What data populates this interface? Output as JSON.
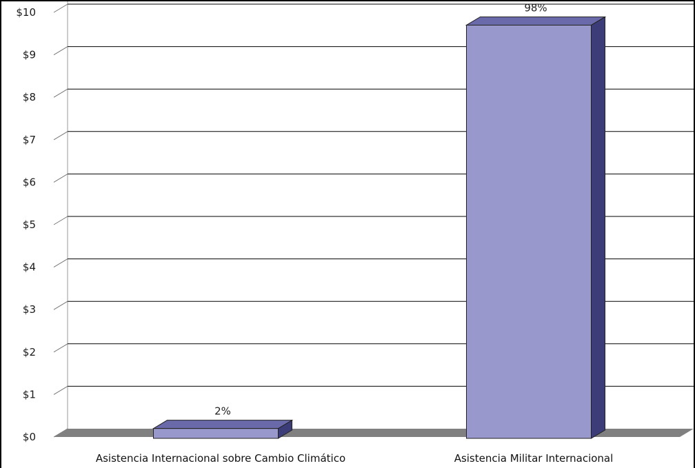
{
  "chart_data": {
    "type": "bar",
    "categories": [
      "Asistencia Internacional sobre Cambio Climático",
      "Asistencia Militar Internacional"
    ],
    "values": [
      0.2,
      9.7
    ],
    "data_labels": [
      "2%",
      "98%"
    ],
    "yticks": [
      "$0",
      "$1",
      "$2",
      "$3",
      "$4",
      "$5",
      "$6",
      "$7",
      "$8",
      "$9",
      "$10"
    ],
    "ylim": [
      0,
      10
    ],
    "grid": true,
    "legend": "none",
    "style": "3d",
    "colors": {
      "bar_front": "#9898cc",
      "bar_top": "#6a6aaa",
      "bar_side": "#3c3c78",
      "floor": "#808080",
      "grid": "#000000"
    }
  }
}
